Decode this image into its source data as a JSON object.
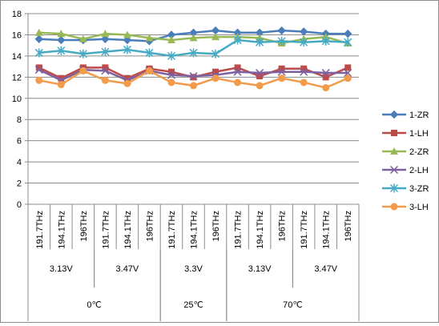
{
  "chart_data": {
    "type": "line",
    "ylim": [
      0,
      18
    ],
    "yticks": [
      0,
      2,
      4,
      6,
      8,
      10,
      12,
      14,
      16,
      18
    ],
    "grid": "horizontal",
    "legend_position": "right",
    "categories": [
      "191.7THz",
      "194.1THz",
      "196THz",
      "191.7THz",
      "194.1THz",
      "196THz",
      "191.7THz",
      "194.1THz",
      "196THz",
      "191.7THz",
      "194.1THz",
      "196THz",
      "191.7THz",
      "194.1THz",
      "196THz"
    ],
    "voltage_groups": [
      {
        "label": "3.13V",
        "start": 0,
        "count": 3
      },
      {
        "label": "3.47V",
        "start": 3,
        "count": 3
      },
      {
        "label": "3.3V",
        "start": 6,
        "count": 3
      },
      {
        "label": "3.13V",
        "start": 9,
        "count": 3
      },
      {
        "label": "3.47V",
        "start": 12,
        "count": 3
      }
    ],
    "temperature_groups": [
      {
        "label": "0℃",
        "start": 0,
        "count": 6
      },
      {
        "label": "25℃",
        "start": 6,
        "count": 3
      },
      {
        "label": "70℃",
        "start": 9,
        "count": 6
      }
    ],
    "series": [
      {
        "name": "1-ZR",
        "color": "#4a7ebb",
        "marker": "diamond",
        "values": [
          15.6,
          15.5,
          15.5,
          15.6,
          15.5,
          15.4,
          16.0,
          16.2,
          16.4,
          16.2,
          16.2,
          16.4,
          16.3,
          16.1,
          16.1
        ]
      },
      {
        "name": "1-LH",
        "color": "#be4b48",
        "marker": "square",
        "values": [
          12.9,
          11.9,
          12.9,
          12.9,
          11.9,
          12.8,
          12.5,
          12.0,
          12.5,
          12.9,
          12.1,
          12.8,
          12.8,
          12.0,
          12.9
        ]
      },
      {
        "name": "2-ZR",
        "color": "#98b954",
        "marker": "triangle",
        "values": [
          16.2,
          16.1,
          15.6,
          16.1,
          16.0,
          15.7,
          15.5,
          15.7,
          15.8,
          15.8,
          15.7,
          15.2,
          15.6,
          15.8,
          15.2
        ]
      },
      {
        "name": "2-LH",
        "color": "#7d60a0",
        "marker": "x",
        "values": [
          12.7,
          11.7,
          12.7,
          12.6,
          11.7,
          12.6,
          12.2,
          12.1,
          12.2,
          12.5,
          12.4,
          12.5,
          12.5,
          12.4,
          12.4
        ]
      },
      {
        "name": "3-ZR",
        "color": "#46aac4",
        "marker": "star",
        "values": [
          14.3,
          14.5,
          14.2,
          14.4,
          14.6,
          14.3,
          14.0,
          14.3,
          14.2,
          15.5,
          15.3,
          15.4,
          15.3,
          15.4,
          15.3
        ]
      },
      {
        "name": "3-LH",
        "color": "#f29b4b",
        "marker": "circle",
        "values": [
          11.7,
          11.3,
          12.6,
          11.7,
          11.4,
          12.6,
          11.5,
          11.2,
          11.9,
          11.5,
          11.2,
          11.9,
          11.5,
          11.0,
          11.9
        ]
      }
    ]
  }
}
